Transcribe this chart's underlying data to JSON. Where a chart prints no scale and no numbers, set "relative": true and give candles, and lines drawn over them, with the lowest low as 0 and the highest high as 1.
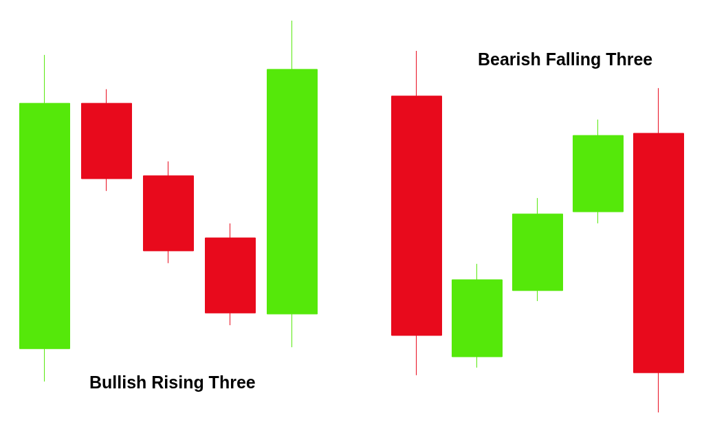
{
  "chart_data": [
    {
      "type": "candlestick",
      "title": "Bullish Rising Three",
      "relative": true,
      "categories": [
        null,
        null,
        null,
        null,
        null
      ],
      "ohlc": [
        [
          0.091,
          0.905,
          0,
          0.771
        ],
        [
          0.771,
          0.81,
          0.528,
          0.562
        ],
        [
          0.57,
          0.61,
          0.328,
          0.362
        ],
        [
          0.398,
          0.438,
          0.156,
          0.19
        ],
        [
          0.187,
          1,
          0.095,
          0.865
        ]
      ],
      "colors": [
        "#55e80a",
        "#e80a1c",
        "#e80a1c",
        "#e80a1c",
        "#55e80a"
      ]
    },
    {
      "type": "candlestick",
      "title": "Bearish Falling Three",
      "relative": true,
      "categories": [
        null,
        null,
        null,
        null,
        null
      ],
      "ohlc": [
        [
          0.875,
          1,
          0.103,
          0.213
        ],
        [
          0.154,
          0.411,
          0.124,
          0.367
        ],
        [
          0.337,
          0.593,
          0.308,
          0.549
        ],
        [
          0.555,
          0.81,
          0.523,
          0.766
        ],
        [
          0.772,
          0.897,
          0,
          0.11
        ]
      ],
      "colors": [
        "#e80a1c",
        "#55e80a",
        "#55e80a",
        "#55e80a",
        "#e80a1c"
      ]
    }
  ]
}
